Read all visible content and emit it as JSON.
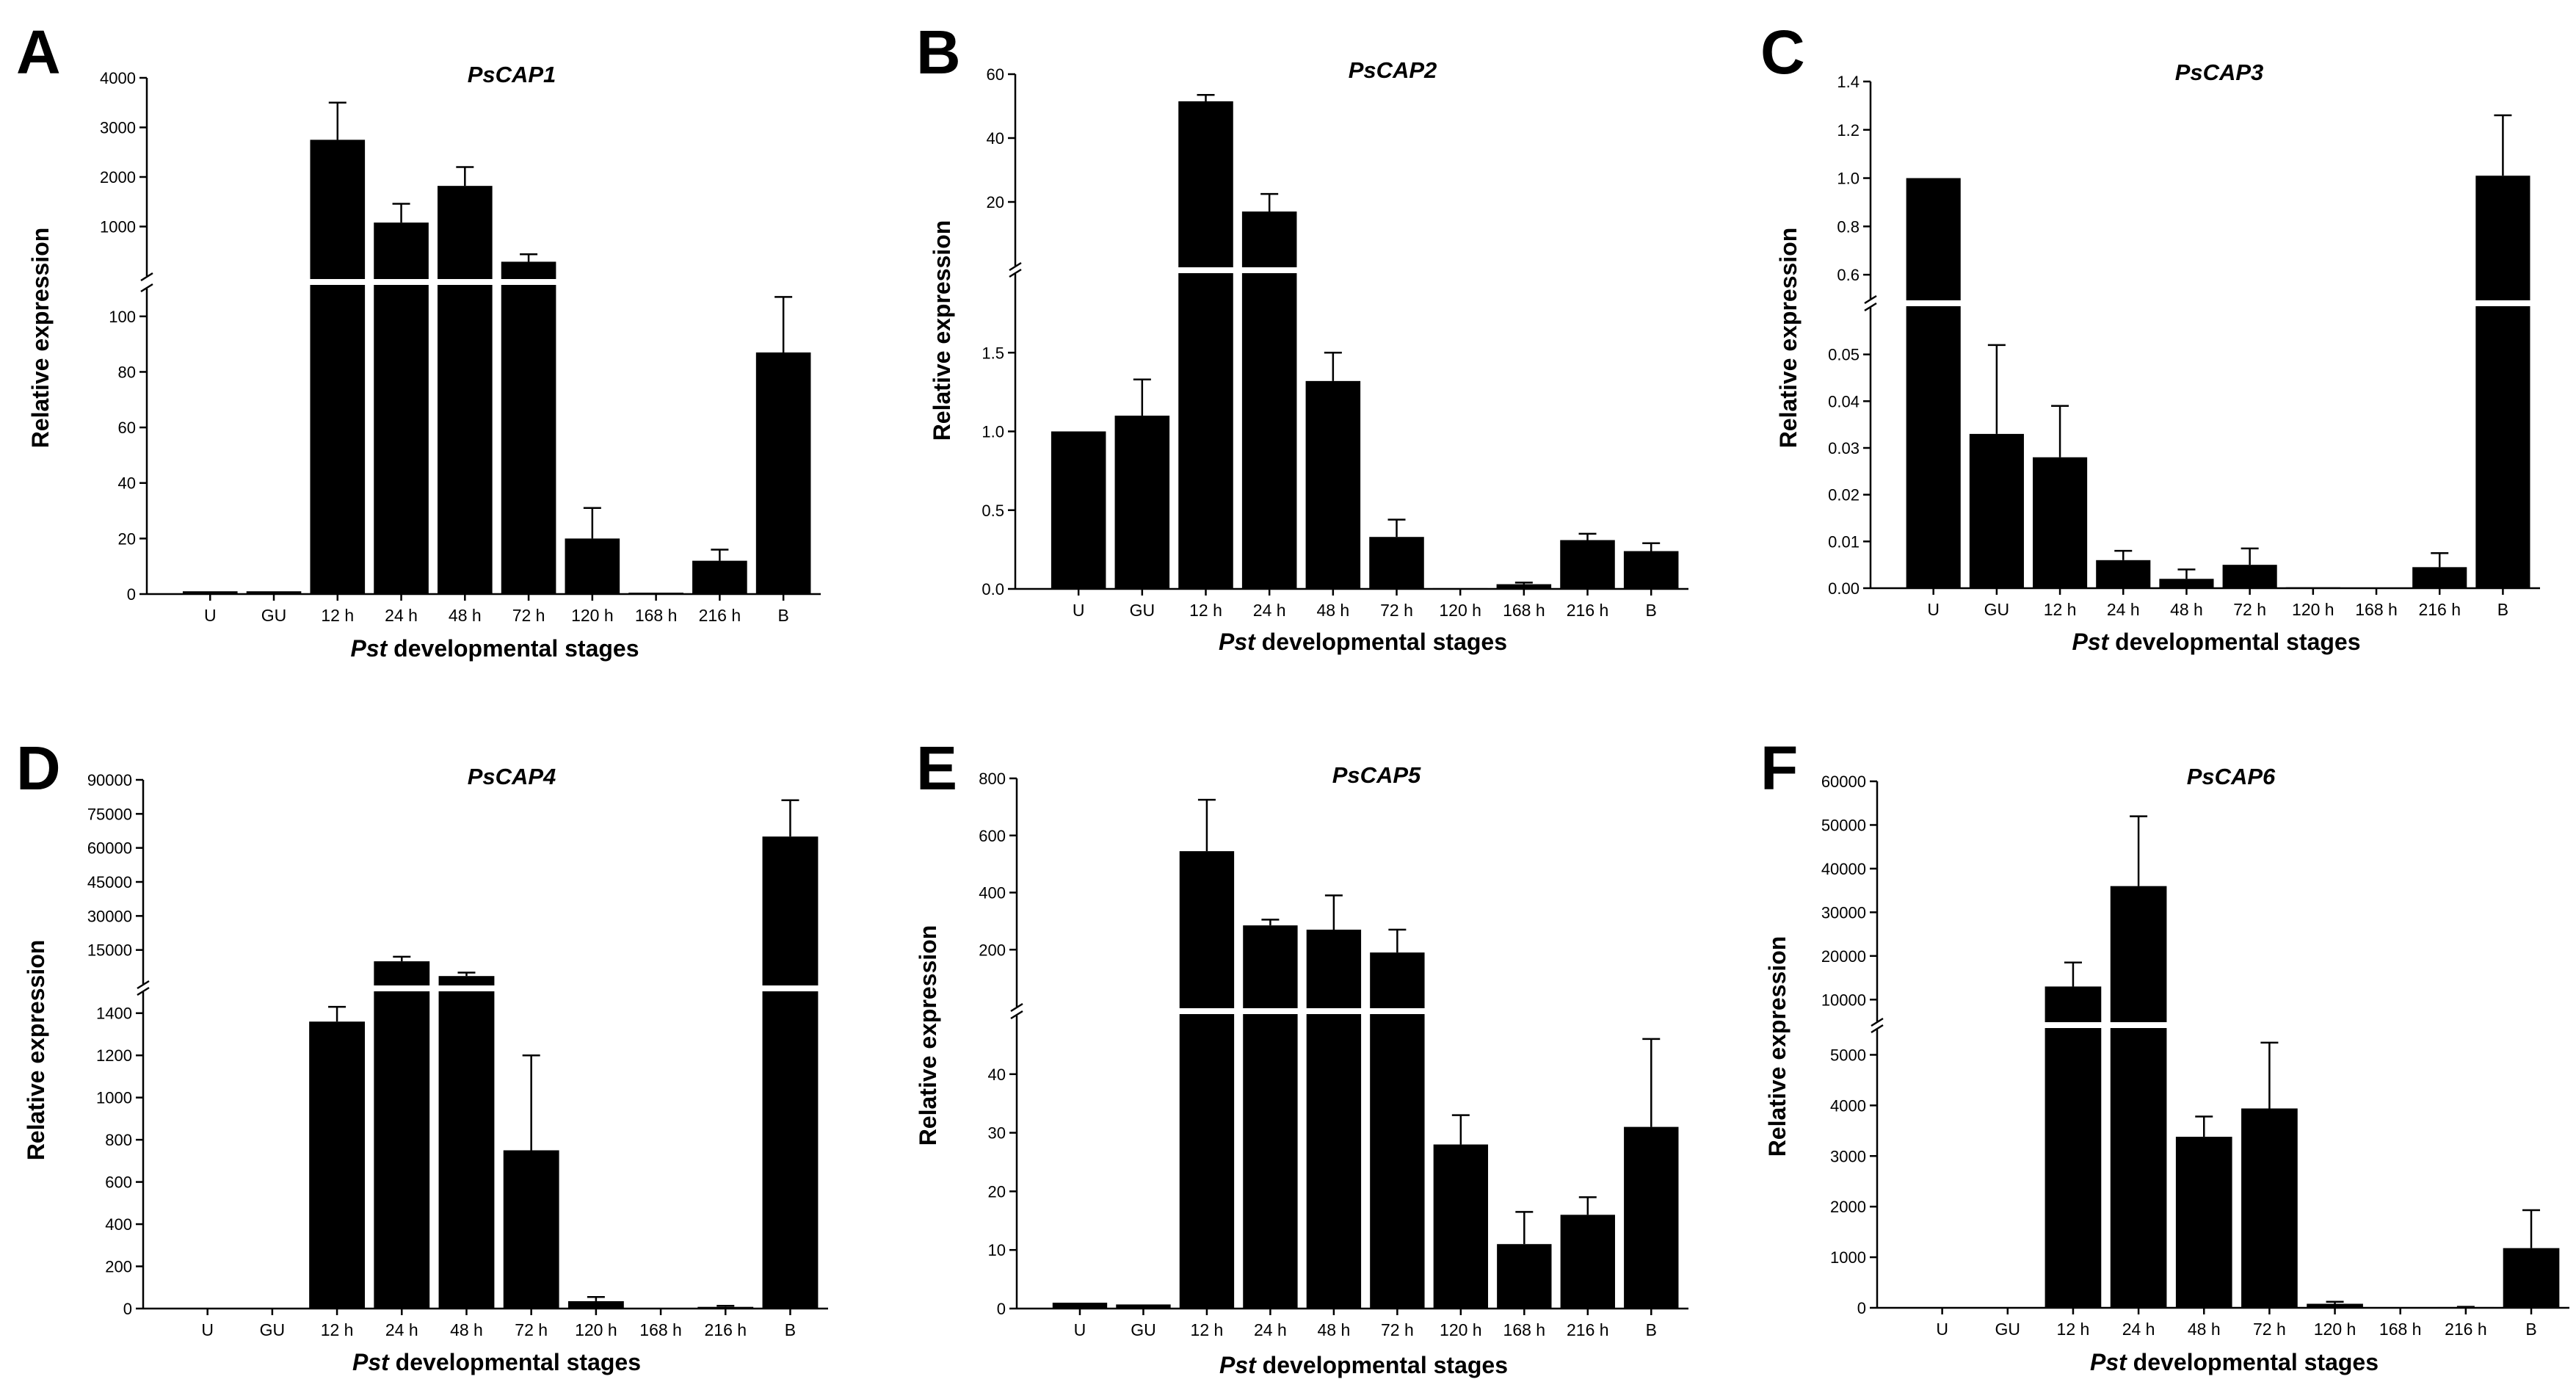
{
  "figure": {
    "x_axis_label_italic": "Pst",
    "x_axis_label_rest": " developmental stages",
    "y_axis_label": "Relative expression"
  },
  "chart_data": [
    {
      "panel": "A",
      "type": "bar",
      "title": "PsCAP1",
      "categories": [
        "U",
        "GU",
        "12 h",
        "24 h",
        "48 h",
        "72 h",
        "120 h",
        "168 h",
        "216 h",
        "B"
      ],
      "values": [
        1,
        1,
        2750,
        1080,
        1820,
        290,
        20,
        0.5,
        12,
        87
      ],
      "errors": [
        0,
        0,
        750,
        380,
        380,
        150,
        11,
        0,
        4,
        20
      ],
      "xlabel": "Pst developmental stages",
      "ylabel": "Relative expression",
      "broken_axis": {
        "lower": {
          "min": 0,
          "max": 110,
          "ticks": [
            0,
            20,
            40,
            60,
            80,
            100
          ]
        },
        "upper": {
          "min": 0,
          "max": 4000,
          "ticks": [
            1000,
            2000,
            3000,
            4000
          ]
        }
      }
    },
    {
      "panel": "B",
      "type": "bar",
      "title": "PsCAP2",
      "categories": [
        "U",
        "GU",
        "12 h",
        "24 h",
        "48 h",
        "72 h",
        "120 h",
        "168 h",
        "216 h",
        "B"
      ],
      "values": [
        1.0,
        1.1,
        51.5,
        17,
        1.32,
        0.33,
        0.005,
        0.03,
        0.31,
        0.24
      ],
      "errors": [
        0,
        0.23,
        2,
        5.5,
        0.18,
        0.11,
        0,
        0.01,
        0.04,
        0.05
      ],
      "xlabel": "Pst developmental stages",
      "ylabel": "Relative expression",
      "broken_axis": {
        "lower": {
          "min": 0,
          "max": 2.0,
          "ticks": [
            0.0,
            0.5,
            1.0,
            1.5
          ]
        },
        "upper": {
          "min": 0,
          "max": 60,
          "ticks": [
            20,
            40,
            60
          ]
        }
      }
    },
    {
      "panel": "C",
      "type": "bar",
      "title": "PsCAP3",
      "categories": [
        "U",
        "GU",
        "12 h",
        "24 h",
        "48 h",
        "72 h",
        "120 h",
        "168 h",
        "216 h",
        "B"
      ],
      "values": [
        1.0,
        0.033,
        0.028,
        0.006,
        0.002,
        0.005,
        0.0002,
        0.0001,
        0.0045,
        1.01
      ],
      "errors": [
        0,
        0.019,
        0.011,
        0.002,
        0.002,
        0.0035,
        0,
        0,
        0.003,
        0.25
      ],
      "xlabel": "Pst developmental stages",
      "ylabel": "Relative expression",
      "broken_axis": {
        "lower": {
          "min": 0,
          "max": 0.06,
          "ticks": [
            0.0,
            0.01,
            0.02,
            0.03,
            0.04,
            0.05
          ]
        },
        "upper": {
          "min": 0.5,
          "max": 1.4,
          "ticks": [
            0.6,
            0.8,
            1.0,
            1.2,
            1.4
          ]
        }
      }
    },
    {
      "panel": "D",
      "type": "bar",
      "title": "PsCAP4",
      "categories": [
        "U",
        "GU",
        "12 h",
        "24 h",
        "48 h",
        "72 h",
        "120 h",
        "168 h",
        "216 h",
        "B"
      ],
      "values": [
        0,
        0,
        1360,
        10000,
        3500,
        750,
        35,
        1,
        8,
        65000
      ],
      "errors": [
        0,
        0,
        70,
        2000,
        1500,
        450,
        20,
        0,
        5,
        16000
      ],
      "xlabel": "Pst developmental stages",
      "ylabel": "Relative expression",
      "broken_axis": {
        "lower": {
          "min": 0,
          "max": 1500,
          "ticks": [
            0,
            200,
            400,
            600,
            800,
            1000,
            1200,
            1400
          ]
        },
        "upper": {
          "min": 0,
          "max": 90000,
          "ticks": [
            15000,
            30000,
            45000,
            60000,
            75000,
            90000
          ]
        }
      }
    },
    {
      "panel": "E",
      "type": "bar",
      "title": "PsCAP5",
      "categories": [
        "U",
        "GU",
        "12 h",
        "24 h",
        "48 h",
        "72 h",
        "120 h",
        "168 h",
        "216 h",
        "B"
      ],
      "values": [
        1,
        0.7,
        545,
        285,
        270,
        190,
        28,
        11,
        16,
        31
      ],
      "errors": [
        0,
        0,
        180,
        20,
        120,
        80,
        5,
        5.5,
        3,
        15
      ],
      "xlabel": "Pst developmental stages",
      "ylabel": "Relative expression",
      "broken_axis": {
        "lower": {
          "min": 0,
          "max": 50,
          "ticks": [
            0,
            10,
            20,
            30,
            40
          ]
        },
        "upper": {
          "min": 0,
          "max": 800,
          "ticks": [
            200,
            400,
            600,
            800
          ]
        }
      }
    },
    {
      "panel": "F",
      "type": "bar",
      "title": "PsCAP6",
      "categories": [
        "U",
        "GU",
        "12 h",
        "24 h",
        "48 h",
        "72 h",
        "120 h",
        "168 h",
        "216 h",
        "B"
      ],
      "values": [
        0,
        0,
        13000,
        36000,
        3380,
        3940,
        80,
        0,
        15,
        1180
      ],
      "errors": [
        0,
        0,
        5500,
        16000,
        400,
        1300,
        40,
        0,
        5,
        750
      ],
      "xlabel": "Pst developmental stages",
      "ylabel": "Relative expression",
      "broken_axis": {
        "lower": {
          "min": 0,
          "max": 5500,
          "ticks": [
            0,
            1000,
            2000,
            3000,
            4000,
            5000
          ]
        },
        "upper": {
          "min": 5000,
          "max": 60000,
          "ticks": [
            10000,
            20000,
            30000,
            40000,
            50000,
            60000
          ]
        }
      }
    }
  ]
}
